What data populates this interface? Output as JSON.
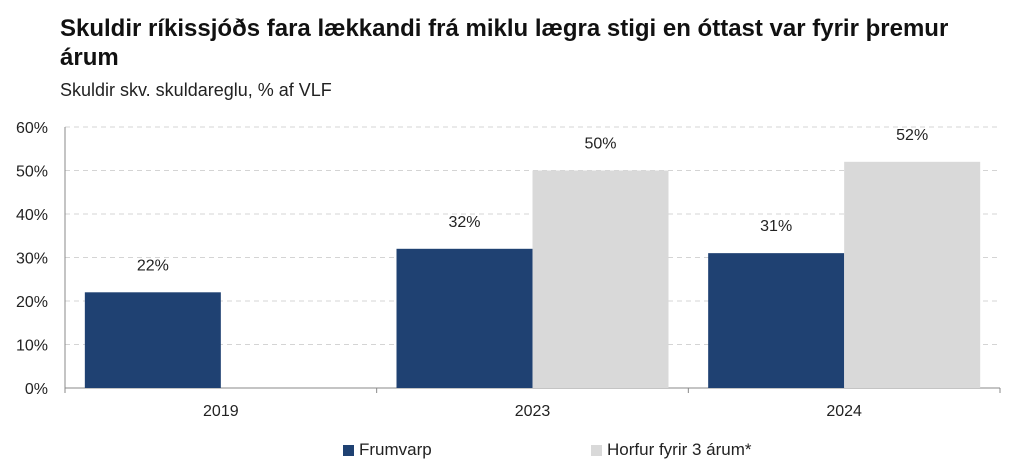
{
  "chart_data": {
    "type": "bar",
    "title": "Skuldir ríkissjóðs fara lækkandi frá miklu lægra stigi en óttast var fyrir þremur árum",
    "subtitle": "Skuldir skv. skuldareglu, % af VLF",
    "categories": [
      "2019",
      "2023",
      "2024"
    ],
    "series": [
      {
        "name": "Frumvarp",
        "values": [
          22,
          32,
          31
        ],
        "labels": [
          "22%",
          "32%",
          "31%"
        ],
        "color": "#1f4172"
      },
      {
        "name": "Horfur fyrir 3 árum*",
        "values": [
          null,
          50,
          52
        ],
        "labels": [
          "",
          "50%",
          "52%"
        ],
        "color": "#d9d9d9"
      }
    ],
    "ylim": [
      0,
      60
    ],
    "yticks": [
      "0%",
      "10%",
      "20%",
      "30%",
      "40%",
      "50%",
      "60%"
    ],
    "grid": true,
    "legend": "bottom"
  }
}
